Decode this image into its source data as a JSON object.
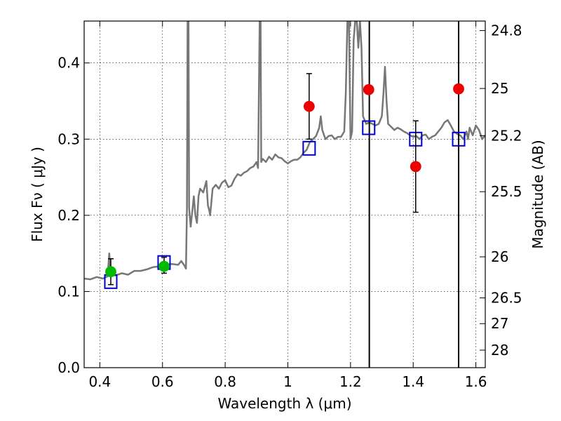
{
  "chart_data": {
    "type": "scatter",
    "title": "",
    "xlabel": "Wavelength  λ (μm)",
    "ylabel": "Flux  Fν  ( μJy )",
    "ylabel_right": "Magnitude (AB)",
    "xlim": [
      0.35,
      1.63
    ],
    "ylim": [
      0.0,
      0.455
    ],
    "xticks": [
      0.4,
      0.6,
      0.8,
      1.0,
      1.2,
      1.4,
      1.6
    ],
    "xtick_labels": [
      "0.4",
      "0.6",
      "0.8",
      "1",
      "1.2",
      "1.4",
      "1.6"
    ],
    "yticks": [
      0.0,
      0.1,
      0.2,
      0.3,
      0.4
    ],
    "ytick_labels": [
      "0.0",
      "0.1",
      "0.2",
      "0.3",
      "0.4"
    ],
    "right_ticks": [
      {
        "label": "24.8",
        "flux": 0.4425
      },
      {
        "label": "25",
        "flux": 0.3665
      },
      {
        "label": "25.2",
        "flux": 0.3045
      },
      {
        "label": "25.5",
        "flux": 0.231
      },
      {
        "label": "26",
        "flux": 0.1455
      },
      {
        "label": "26.5",
        "flux": 0.0916
      },
      {
        "label": "27",
        "flux": 0.0578
      },
      {
        "label": "28",
        "flux": 0.023
      }
    ],
    "grid": true,
    "grid_style": "dotted",
    "vertical_lines_x": [
      1.26,
      1.545
    ],
    "colors": {
      "model": "#777777",
      "model_photometry": "#0000cc",
      "green_points": "#00bb00",
      "red_points": "#ee0000",
      "errorbars": "#000000",
      "vlines": "#000000"
    },
    "series": [
      {
        "kind": "model_spectrum",
        "points": [
          [
            0.35,
            0.117
          ],
          [
            0.37,
            0.116
          ],
          [
            0.39,
            0.119
          ],
          [
            0.41,
            0.117
          ],
          [
            0.425,
            0.12
          ],
          [
            0.43,
            0.15
          ],
          [
            0.435,
            0.122
          ],
          [
            0.45,
            0.121
          ],
          [
            0.47,
            0.124
          ],
          [
            0.49,
            0.122
          ],
          [
            0.51,
            0.127
          ],
          [
            0.53,
            0.127
          ],
          [
            0.55,
            0.129
          ],
          [
            0.57,
            0.132
          ],
          [
            0.59,
            0.133
          ],
          [
            0.61,
            0.135
          ],
          [
            0.63,
            0.136
          ],
          [
            0.65,
            0.135
          ],
          [
            0.66,
            0.14
          ],
          [
            0.67,
            0.134
          ],
          [
            0.675,
            0.13
          ],
          [
            0.678,
            0.21
          ],
          [
            0.68,
            0.455
          ],
          [
            0.683,
            0.455
          ],
          [
            0.685,
            0.21
          ],
          [
            0.69,
            0.185
          ],
          [
            0.695,
            0.205
          ],
          [
            0.7,
            0.225
          ],
          [
            0.705,
            0.2
          ],
          [
            0.71,
            0.19
          ],
          [
            0.715,
            0.225
          ],
          [
            0.72,
            0.235
          ],
          [
            0.73,
            0.23
          ],
          [
            0.74,
            0.245
          ],
          [
            0.745,
            0.213
          ],
          [
            0.75,
            0.205
          ],
          [
            0.752,
            0.2
          ],
          [
            0.755,
            0.213
          ],
          [
            0.76,
            0.235
          ],
          [
            0.77,
            0.24
          ],
          [
            0.78,
            0.235
          ],
          [
            0.79,
            0.243
          ],
          [
            0.8,
            0.246
          ],
          [
            0.81,
            0.237
          ],
          [
            0.82,
            0.239
          ],
          [
            0.83,
            0.248
          ],
          [
            0.84,
            0.254
          ],
          [
            0.85,
            0.252
          ],
          [
            0.86,
            0.256
          ],
          [
            0.87,
            0.258
          ],
          [
            0.88,
            0.262
          ],
          [
            0.89,
            0.264
          ],
          [
            0.9,
            0.27
          ],
          [
            0.905,
            0.262
          ],
          [
            0.91,
            0.455
          ],
          [
            0.913,
            0.455
          ],
          [
            0.915,
            0.27
          ],
          [
            0.92,
            0.274
          ],
          [
            0.93,
            0.27
          ],
          [
            0.94,
            0.277
          ],
          [
            0.95,
            0.273
          ],
          [
            0.96,
            0.28
          ],
          [
            0.97,
            0.276
          ],
          [
            0.98,
            0.275
          ],
          [
            0.99,
            0.271
          ],
          [
            1.0,
            0.268
          ],
          [
            1.01,
            0.271
          ],
          [
            1.02,
            0.273
          ],
          [
            1.03,
            0.273
          ],
          [
            1.04,
            0.276
          ],
          [
            1.05,
            0.282
          ],
          [
            1.06,
            0.286
          ],
          [
            1.07,
            0.296
          ],
          [
            1.08,
            0.3
          ],
          [
            1.09,
            0.304
          ],
          [
            1.1,
            0.315
          ],
          [
            1.105,
            0.33
          ],
          [
            1.11,
            0.312
          ],
          [
            1.12,
            0.3
          ],
          [
            1.13,
            0.304
          ],
          [
            1.14,
            0.305
          ],
          [
            1.15,
            0.3
          ],
          [
            1.16,
            0.303
          ],
          [
            1.17,
            0.303
          ],
          [
            1.18,
            0.31
          ],
          [
            1.185,
            0.36
          ],
          [
            1.19,
            0.455
          ],
          [
            1.195,
            0.455
          ],
          [
            1.2,
            0.3
          ],
          [
            1.205,
            0.31
          ],
          [
            1.21,
            0.43
          ],
          [
            1.215,
            0.455
          ],
          [
            1.22,
            0.455
          ],
          [
            1.225,
            0.42
          ],
          [
            1.23,
            0.455
          ],
          [
            1.235,
            0.42
          ],
          [
            1.24,
            0.33
          ],
          [
            1.25,
            0.32
          ],
          [
            1.26,
            0.322
          ],
          [
            1.27,
            0.32
          ],
          [
            1.28,
            0.318
          ],
          [
            1.29,
            0.32
          ],
          [
            1.3,
            0.33
          ],
          [
            1.305,
            0.36
          ],
          [
            1.31,
            0.395
          ],
          [
            1.315,
            0.35
          ],
          [
            1.32,
            0.32
          ],
          [
            1.33,
            0.316
          ],
          [
            1.34,
            0.312
          ],
          [
            1.35,
            0.315
          ],
          [
            1.36,
            0.313
          ],
          [
            1.37,
            0.31
          ],
          [
            1.38,
            0.308
          ],
          [
            1.39,
            0.305
          ],
          [
            1.4,
            0.303
          ],
          [
            1.41,
            0.304
          ],
          [
            1.42,
            0.3
          ],
          [
            1.43,
            0.305
          ],
          [
            1.44,
            0.306
          ],
          [
            1.45,
            0.3
          ],
          [
            1.46,
            0.303
          ],
          [
            1.47,
            0.305
          ],
          [
            1.48,
            0.31
          ],
          [
            1.49,
            0.315
          ],
          [
            1.5,
            0.322
          ],
          [
            1.51,
            0.325
          ],
          [
            1.52,
            0.318
          ],
          [
            1.53,
            0.31
          ],
          [
            1.54,
            0.307
          ],
          [
            1.55,
            0.305
          ],
          [
            1.56,
            0.3
          ],
          [
            1.57,
            0.31
          ],
          [
            1.575,
            0.3
          ],
          [
            1.58,
            0.315
          ],
          [
            1.59,
            0.305
          ],
          [
            1.6,
            0.318
          ],
          [
            1.61,
            0.312
          ],
          [
            1.62,
            0.3
          ],
          [
            1.63,
            0.305
          ]
        ]
      },
      {
        "kind": "model_photometry",
        "marker": "open-square",
        "points": [
          [
            0.435,
            0.113
          ],
          [
            0.605,
            0.138
          ],
          [
            1.068,
            0.288
          ],
          [
            1.258,
            0.315
          ],
          [
            1.408,
            0.3
          ],
          [
            1.545,
            0.3
          ]
        ]
      },
      {
        "kind": "observed_green",
        "marker": "filled-circle",
        "points": [
          {
            "x": 0.435,
            "y": 0.126,
            "err_low": 0.109,
            "err_high": 0.143
          },
          {
            "x": 0.605,
            "y": 0.133,
            "err_low": 0.124,
            "err_high": 0.145
          }
        ]
      },
      {
        "kind": "observed_red",
        "marker": "filled-circle",
        "points": [
          {
            "x": 1.068,
            "y": 0.343,
            "err_low": 0.3,
            "err_high": 0.386
          },
          {
            "x": 1.258,
            "y": 0.365,
            "err_low": null,
            "err_high": null
          },
          {
            "x": 1.408,
            "y": 0.264,
            "err_low": 0.204,
            "err_high": 0.324
          },
          {
            "x": 1.545,
            "y": 0.366,
            "err_low": null,
            "err_high": null
          }
        ]
      }
    ]
  }
}
